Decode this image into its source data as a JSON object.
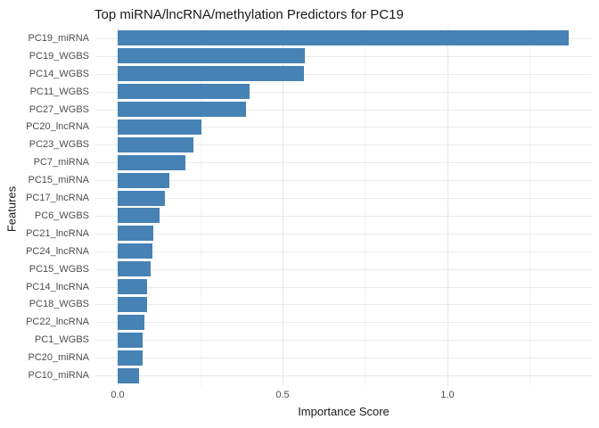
{
  "title": "Top miRNA/lncRNA/methylation Predictors for PC19",
  "chart_data": {
    "type": "bar",
    "orientation": "horizontal",
    "title": "Top miRNA/lncRNA/methylation Predictors for PC19",
    "xlabel": "Importance Score",
    "ylabel": "Features",
    "categories": [
      "PC19_miRNA",
      "PC19_WGBS",
      "PC14_WGBS",
      "PC11_WGBS",
      "PC27_WGBS",
      "PC20_lncRNA",
      "PC23_WGBS",
      "PC7_miRNA",
      "PC15_miRNA",
      "PC17_lncRNA",
      "PC6_WGBS",
      "PC21_lncRNA",
      "PC24_lncRNA",
      "PC15_WGBS",
      "PC14_lncRNA",
      "PC18_WGBS",
      "PC22_lncRNA",
      "PC1_WGBS",
      "PC20_miRNA",
      "PC10_miRNA"
    ],
    "values": [
      1.37,
      0.57,
      0.565,
      0.4,
      0.39,
      0.255,
      0.23,
      0.205,
      0.158,
      0.144,
      0.128,
      0.109,
      0.106,
      0.099,
      0.09,
      0.089,
      0.08,
      0.077,
      0.076,
      0.066
    ],
    "xlim": [
      -0.069,
      1.44
    ],
    "x_ticks": [
      0.0,
      0.5,
      1.0
    ],
    "x_tick_labels": [
      "0.0",
      "0.5",
      "1.0"
    ],
    "x_minor_ticks": [
      0.25,
      0.75,
      1.25
    ],
    "grid": true,
    "legend": false,
    "bar_color": "#4682B4",
    "major_grid_color": "#e6e6e6",
    "minor_grid_color": "#f2f2f2",
    "tick_text_color": "#4d4d4d",
    "title_text_color": "#1a1a1a"
  }
}
